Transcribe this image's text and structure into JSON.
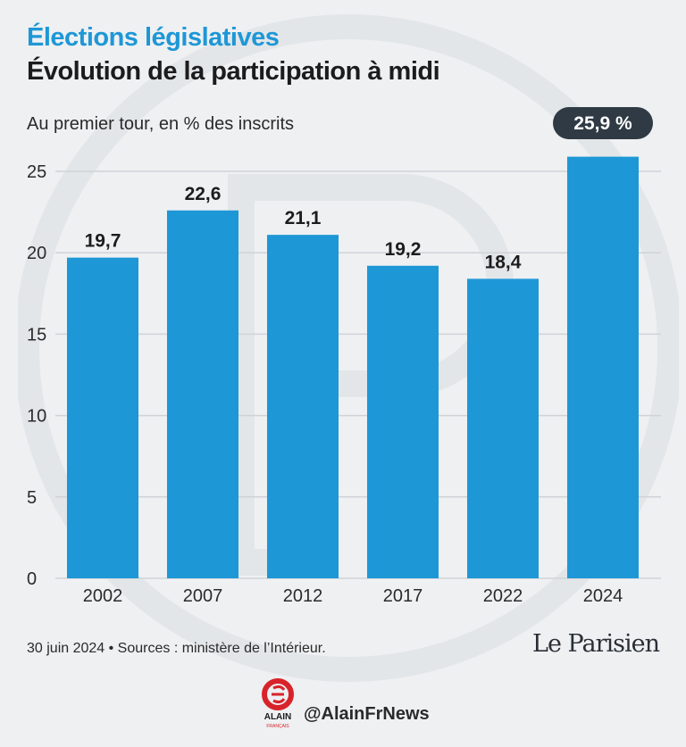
{
  "header": {
    "title": "Élections législatives",
    "subtitle_title": "Évolution de la participation à midi",
    "unit_note": "Au premier tour, en % des inscrits"
  },
  "chart_data": {
    "type": "bar",
    "categories": [
      "2002",
      "2007",
      "2012",
      "2017",
      "2022",
      "2024"
    ],
    "values": [
      19.7,
      22.6,
      21.1,
      19.2,
      18.4,
      25.9
    ],
    "data_labels": [
      "19,7",
      "22,6",
      "21,1",
      "19,2",
      "18,4",
      "25,9 %"
    ],
    "highlight_index": 5,
    "y_ticks": [
      "0",
      "5",
      "10",
      "15",
      "20",
      "25"
    ],
    "ylim": [
      0,
      26
    ],
    "grid": true,
    "xlabel": "",
    "ylabel": "",
    "bar_color": "#1e97d6",
    "highlight_badge_color": "#2f3a44",
    "grid_color": "#cfd3d8"
  },
  "footer": {
    "source": "30 juin 2024 • Sources : ministère de l’Intérieur.",
    "publisher": "Le Parisien"
  },
  "credit": {
    "logo_text": "ALAIN",
    "logo_subtext": "FRANÇAIS",
    "handle": "@AlainFrNews",
    "logo_color": "#d8232a"
  }
}
